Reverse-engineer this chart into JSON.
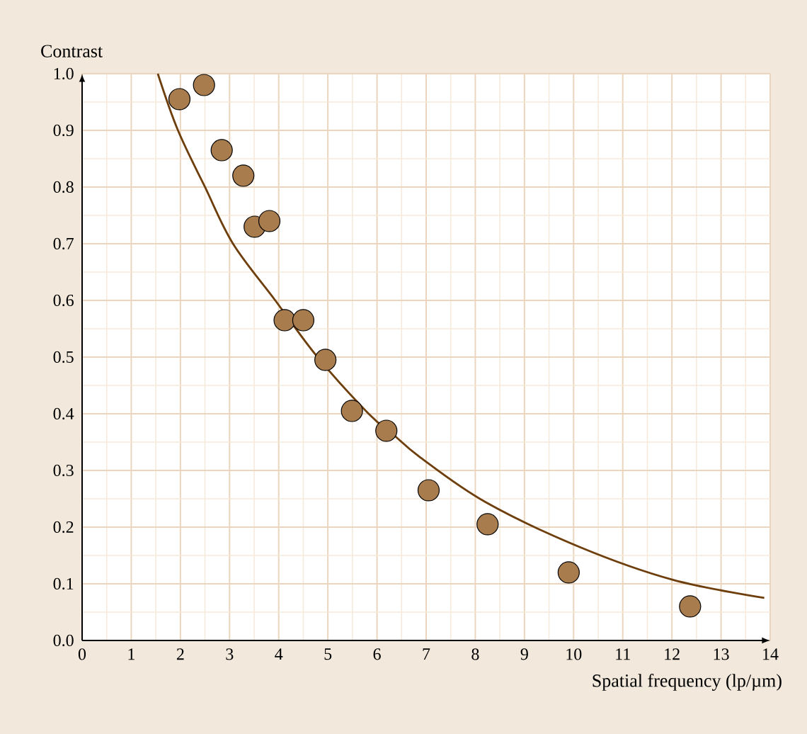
{
  "chart_data": {
    "type": "scatter",
    "xlabel": "Spatial frequency (lp/µm)",
    "ylabel": "Contrast",
    "xlim": [
      0,
      14
    ],
    "ylim": [
      0,
      1
    ],
    "xticks": [
      0,
      1,
      2,
      3,
      4,
      5,
      6,
      7,
      8,
      9,
      10,
      11,
      12,
      13,
      14
    ],
    "yticks": [
      {
        "value": 0,
        "label": "0.0"
      },
      0.1,
      0.2,
      0.3,
      0.4,
      0.5,
      0.6,
      0.7,
      0.8,
      0.9,
      {
        "value": 1,
        "label": "1.0"
      }
    ],
    "grid": true,
    "series": [
      {
        "marker": "circle",
        "color": "#a87c4c",
        "x": [
          1.98,
          2.48,
          2.84,
          3.28,
          3.51,
          3.81,
          4.12,
          4.5,
          4.95,
          5.49,
          6.19,
          7.05,
          8.25,
          9.9,
          12.37
        ],
        "values": [
          0.955,
          0.98,
          0.865,
          0.82,
          0.73,
          0.74,
          0.565,
          0.565,
          0.495,
          0.405,
          0.37,
          0.265,
          0.205,
          0.12,
          0.06
        ]
      },
      {
        "type": "line",
        "color": "#6e3f0c",
        "x": [
          1.54,
          1.95,
          2.5,
          3.07,
          3.93,
          4.79,
          5.83,
          6.31,
          6.88,
          8.21,
          10.12,
          12.02,
          13.88
        ],
        "values": [
          1.0,
          0.9,
          0.8,
          0.7,
          0.6,
          0.5,
          0.4,
          0.365,
          0.323,
          0.244,
          0.165,
          0.107,
          0.075
        ]
      }
    ]
  }
}
